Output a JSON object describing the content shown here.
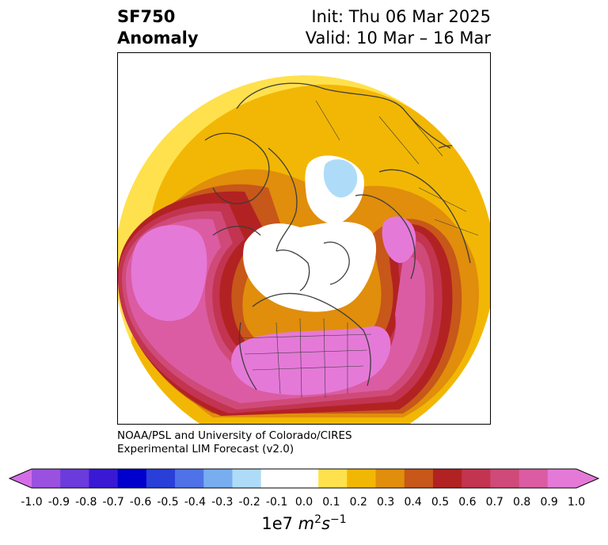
{
  "title": {
    "variable": "SF750",
    "kind": "Anomaly",
    "init": "Init: Thu 06 Mar 2025",
    "valid": "Valid: 10 Mar – 16 Mar"
  },
  "credit": {
    "line1": "NOAA/PSL and University of Colorado/CIRES",
    "line2": "Experimental LIM Forecast (v2.0)"
  },
  "colorbar": {
    "unit_prefix": "1e7",
    "unit_m": "m",
    "unit_m_exp": "2",
    "unit_s": "s",
    "unit_s_exp": "−1",
    "ticks": [
      "-1.0",
      "-0.9",
      "-0.8",
      "-0.7",
      "-0.6",
      "-0.5",
      "-0.4",
      "-0.3",
      "-0.2",
      "-0.1",
      "0.0",
      "0.1",
      "0.2",
      "0.3",
      "0.4",
      "0.5",
      "0.6",
      "0.7",
      "0.8",
      "0.9",
      "1.0"
    ],
    "colors": [
      "#9b51e0",
      "#6b3bdc",
      "#3a19d4",
      "#0000cc",
      "#2a3fd8",
      "#4f72e8",
      "#78aef0",
      "#aedcf8",
      "#ffffff",
      "#ffffff",
      "#ffe14d",
      "#f2b705",
      "#e08e0b",
      "#c8571a",
      "#b22222",
      "#c23450",
      "#cf4a78",
      "#db5ca3",
      "#e579d8"
    ],
    "under_color": "#d46ee8",
    "over_color": "#e579d8"
  },
  "map": {
    "projection": "north-polar-stereographic",
    "features": [
      "coastlines",
      "country-borders",
      "us-state-borders"
    ],
    "anomaly_pattern": "positive ring around the Arctic; strongest over North America and the North Pacific; weak negative anomaly over Siberia",
    "colors": {
      "land_line": "#3c3c3c"
    }
  }
}
